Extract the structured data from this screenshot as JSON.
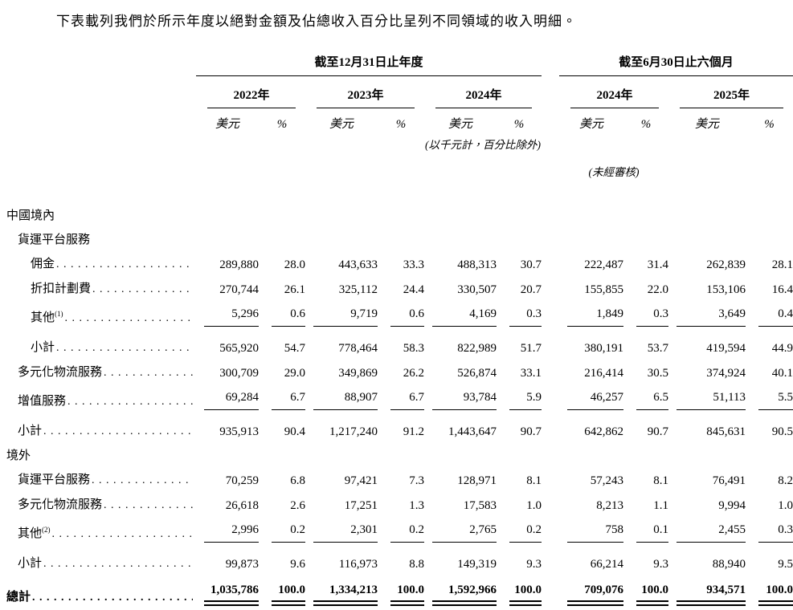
{
  "intro": "下表載列我們於所示年度以絕對金額及佔總收入百分比呈列不同領域的收入明細。",
  "table": {
    "col_groups": [
      {
        "label": "截至12月31日止年度",
        "years": [
          "2022年",
          "2023年",
          "2024年"
        ]
      },
      {
        "label": "截至6月30日止六個月",
        "years": [
          "2024年",
          "2025年"
        ]
      }
    ],
    "unit_usd": "美元",
    "unit_pct": "%",
    "note_units": "(以千元計，百分比除外)",
    "note_unaudited": "(未經審核)",
    "rows": [
      {
        "label": "中國境內",
        "indent": 0,
        "type": "section"
      },
      {
        "label": "貨運平台服務",
        "indent": 1,
        "type": "section"
      },
      {
        "label": "佣金",
        "indent": 2,
        "dots": true,
        "type": "data",
        "values": [
          "289,880",
          "28.0",
          "443,633",
          "33.3",
          "488,313",
          "30.7",
          "222,487",
          "31.4",
          "262,839",
          "28.1"
        ]
      },
      {
        "label": "折扣計劃費",
        "indent": 2,
        "dots": true,
        "type": "data",
        "values": [
          "270,744",
          "26.1",
          "325,112",
          "24.4",
          "330,507",
          "20.7",
          "155,855",
          "22.0",
          "153,106",
          "16.4"
        ]
      },
      {
        "label": "其他",
        "sup": "(1)",
        "indent": 2,
        "dots": true,
        "type": "data",
        "rule_below": true,
        "values": [
          "5,296",
          "0.6",
          "9,719",
          "0.6",
          "4,169",
          "0.3",
          "1,849",
          "0.3",
          "3,649",
          "0.4"
        ]
      },
      {
        "label": "小計",
        "indent": 2,
        "dots": true,
        "type": "subtotal",
        "values": [
          "565,920",
          "54.7",
          "778,464",
          "58.3",
          "822,989",
          "51.7",
          "380,191",
          "53.7",
          "419,594",
          "44.9"
        ]
      },
      {
        "label": "多元化物流服務",
        "indent": 1,
        "dots": true,
        "type": "data",
        "values": [
          "300,709",
          "29.0",
          "349,869",
          "26.2",
          "526,874",
          "33.1",
          "216,414",
          "30.5",
          "374,924",
          "40.1"
        ]
      },
      {
        "label": "增值服務",
        "indent": 1,
        "dots": true,
        "type": "data",
        "rule_below": true,
        "values": [
          "69,284",
          "6.7",
          "88,907",
          "6.7",
          "93,784",
          "5.9",
          "46,257",
          "6.5",
          "51,113",
          "5.5"
        ]
      },
      {
        "label": "小計",
        "indent": 1,
        "dots": true,
        "type": "subtotal",
        "values": [
          "935,913",
          "90.4",
          "1,217,240",
          "91.2",
          "1,443,647",
          "90.7",
          "642,862",
          "90.7",
          "845,631",
          "90.5"
        ]
      },
      {
        "label": "境外",
        "indent": 0,
        "type": "section"
      },
      {
        "label": "貨運平台服務",
        "indent": 1,
        "dots": true,
        "type": "data",
        "values": [
          "70,259",
          "6.8",
          "97,421",
          "7.3",
          "128,971",
          "8.1",
          "57,243",
          "8.1",
          "76,491",
          "8.2"
        ]
      },
      {
        "label": "多元化物流服務",
        "indent": 1,
        "dots": true,
        "type": "data",
        "values": [
          "26,618",
          "2.6",
          "17,251",
          "1.3",
          "17,583",
          "1.0",
          "8,213",
          "1.1",
          "9,994",
          "1.0"
        ]
      },
      {
        "label": "其他",
        "sup": "(2)",
        "indent": 1,
        "dots": true,
        "type": "data",
        "rule_below": true,
        "values": [
          "2,996",
          "0.2",
          "2,301",
          "0.2",
          "2,765",
          "0.2",
          "758",
          "0.1",
          "2,455",
          "0.3"
        ]
      },
      {
        "label": "小計",
        "indent": 1,
        "dots": true,
        "type": "subtotal",
        "values": [
          "99,873",
          "9.6",
          "116,973",
          "8.8",
          "149,319",
          "9.3",
          "66,214",
          "9.3",
          "88,940",
          "9.5"
        ]
      },
      {
        "label": "總計",
        "indent": 0,
        "dots": true,
        "type": "total",
        "values": [
          "1,035,786",
          "100.0",
          "1,334,213",
          "100.0",
          "1,592,966",
          "100.0",
          "709,076",
          "100.0",
          "934,571",
          "100.0"
        ]
      }
    ]
  }
}
